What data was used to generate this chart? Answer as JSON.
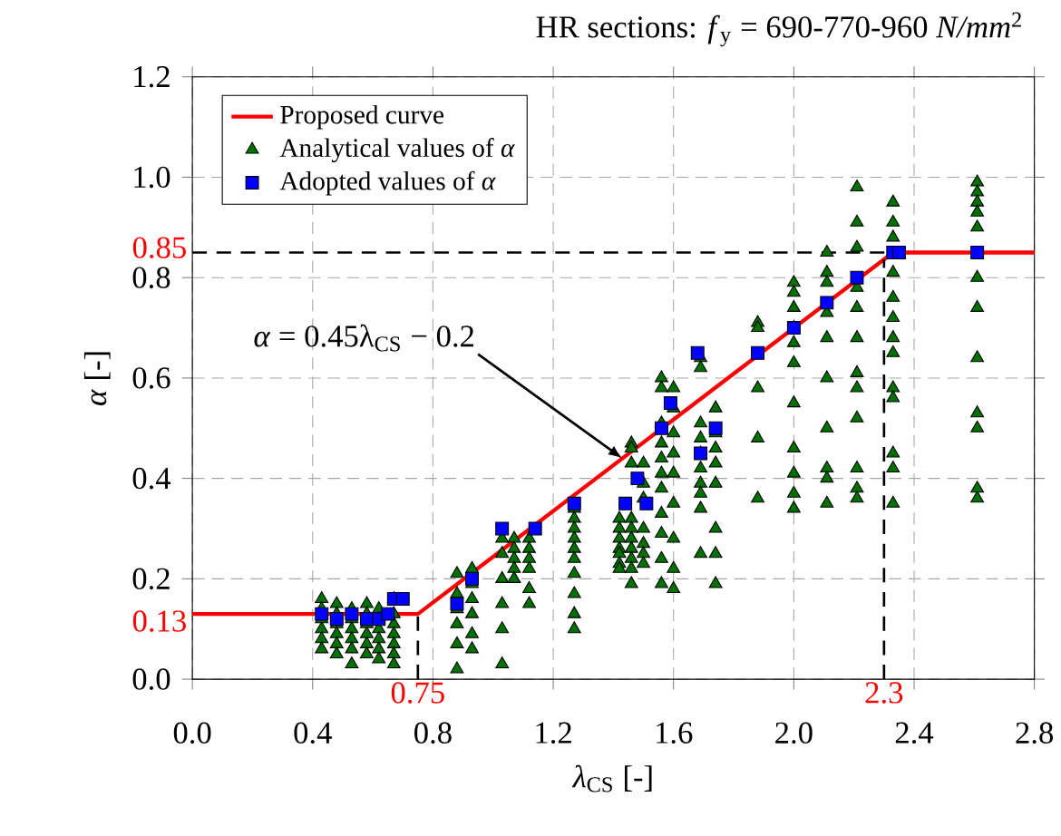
{
  "chart_data": {
    "type": "scatter",
    "title": "HR sections: *f*$_{y}$ = 690-770-960 *N/mm*$^{2}$",
    "xlabel": "*λ*$_{CS}$ [-]",
    "ylabel": "*α* [-]",
    "xlim": [
      0,
      2.8
    ],
    "ylim": [
      0,
      1.2
    ],
    "xticks": [
      {
        "value": 0,
        "label": "0.0"
      },
      0.4,
      0.8,
      1.2,
      1.6,
      {
        "value": 2,
        "label": "2.0"
      },
      2.4,
      2.8
    ],
    "yticks": [
      {
        "value": 0,
        "label": "0.0"
      },
      0.2,
      0.4,
      0.6,
      0.8,
      {
        "value": 1,
        "label": "1.0"
      },
      1.2
    ],
    "grid": true,
    "legend": "top left",
    "series": [
      {
        "name": "Proposed curve",
        "type": "line",
        "color": "#ff0000",
        "marker": "none",
        "x": [
          0,
          0.75,
          2.33,
          2.8
        ],
        "values": [
          0.13,
          0.13,
          0.85,
          0.85
        ]
      },
      {
        "name": "Analytical values of *α*",
        "type": "scatter",
        "color": "#007000",
        "marker": "triangle",
        "x": [
          0.43,
          0.43,
          0.43,
          0.43,
          0.43,
          0.43,
          0.48,
          0.48,
          0.48,
          0.48,
          0.48,
          0.48,
          0.53,
          0.53,
          0.53,
          0.53,
          0.53,
          0.53,
          0.58,
          0.58,
          0.58,
          0.58,
          0.58,
          0.58,
          0.62,
          0.62,
          0.62,
          0.62,
          0.62,
          0.62,
          0.67,
          0.67,
          0.67,
          0.67,
          0.67,
          0.67,
          0.67,
          0.88,
          0.88,
          0.88,
          0.88,
          0.88,
          0.88,
          0.93,
          0.93,
          0.93,
          0.93,
          0.93,
          0.93,
          1.03,
          1.03,
          1.03,
          1.03,
          1.03,
          1.03,
          1.07,
          1.07,
          1.07,
          1.07,
          1.07,
          1.12,
          1.12,
          1.12,
          1.12,
          1.12,
          1.12,
          1.27,
          1.27,
          1.27,
          1.27,
          1.27,
          1.27,
          1.27,
          1.27,
          1.27,
          1.27,
          1.42,
          1.42,
          1.42,
          1.42,
          1.42,
          1.42,
          1.42,
          1.46,
          1.46,
          1.46,
          1.46,
          1.46,
          1.46,
          1.46,
          1.46,
          1.46,
          1.46,
          1.5,
          1.5,
          1.5,
          1.5,
          1.5,
          1.5,
          1.5,
          1.56,
          1.56,
          1.56,
          1.56,
          1.56,
          1.56,
          1.56,
          1.56,
          1.56,
          1.56,
          1.56,
          1.6,
          1.6,
          1.6,
          1.6,
          1.6,
          1.6,
          1.6,
          1.6,
          1.6,
          1.69,
          1.69,
          1.69,
          1.69,
          1.69,
          1.69,
          1.69,
          1.69,
          1.69,
          1.69,
          1.74,
          1.74,
          1.74,
          1.74,
          1.74,
          1.74,
          1.74,
          1.74,
          1.88,
          1.88,
          1.88,
          1.88,
          1.88,
          2.0,
          2.0,
          2.0,
          2.0,
          2.0,
          2.0,
          2.0,
          2.0,
          2.0,
          2.0,
          2.0,
          2.11,
          2.11,
          2.11,
          2.11,
          2.11,
          2.11,
          2.11,
          2.11,
          2.11,
          2.11,
          2.21,
          2.21,
          2.21,
          2.21,
          2.21,
          2.21,
          2.21,
          2.21,
          2.21,
          2.21,
          2.21,
          2.21,
          2.33,
          2.33,
          2.33,
          2.33,
          2.33,
          2.33,
          2.33,
          2.33,
          2.33,
          2.33,
          2.33,
          2.33,
          2.33,
          2.61,
          2.61,
          2.61,
          2.61,
          2.61,
          2.61,
          2.61,
          2.61,
          2.61,
          2.61,
          2.61,
          2.61
        ],
        "values": [
          0.16,
          0.14,
          0.12,
          0.1,
          0.08,
          0.06,
          0.15,
          0.13,
          0.11,
          0.09,
          0.07,
          0.05,
          0.14,
          0.12,
          0.1,
          0.08,
          0.06,
          0.03,
          0.15,
          0.13,
          0.11,
          0.09,
          0.07,
          0.05,
          0.14,
          0.12,
          0.1,
          0.08,
          0.06,
          0.04,
          0.16,
          0.13,
          0.11,
          0.09,
          0.07,
          0.05,
          0.03,
          0.21,
          0.17,
          0.14,
          0.11,
          0.07,
          0.02,
          0.22,
          0.19,
          0.16,
          0.13,
          0.09,
          0.06,
          0.28,
          0.25,
          0.2,
          0.15,
          0.1,
          0.03,
          0.28,
          0.26,
          0.24,
          0.22,
          0.2,
          0.28,
          0.26,
          0.24,
          0.22,
          0.18,
          0.15,
          0.34,
          0.32,
          0.3,
          0.28,
          0.26,
          0.24,
          0.21,
          0.17,
          0.13,
          0.1,
          0.32,
          0.3,
          0.28,
          0.26,
          0.25,
          0.23,
          0.22,
          0.47,
          0.46,
          0.43,
          0.32,
          0.3,
          0.28,
          0.26,
          0.24,
          0.22,
          0.19,
          0.43,
          0.39,
          0.36,
          0.3,
          0.27,
          0.25,
          0.23,
          0.6,
          0.58,
          0.51,
          0.47,
          0.44,
          0.41,
          0.38,
          0.33,
          0.29,
          0.24,
          0.19,
          0.58,
          0.54,
          0.49,
          0.45,
          0.41,
          0.35,
          0.28,
          0.22,
          0.18,
          0.64,
          0.62,
          0.51,
          0.48,
          0.45,
          0.42,
          0.39,
          0.37,
          0.34,
          0.25,
          0.54,
          0.49,
          0.46,
          0.43,
          0.39,
          0.3,
          0.25,
          0.19,
          0.71,
          0.7,
          0.58,
          0.48,
          0.36,
          0.79,
          0.77,
          0.74,
          0.7,
          0.67,
          0.63,
          0.55,
          0.46,
          0.41,
          0.37,
          0.34,
          0.85,
          0.81,
          0.79,
          0.73,
          0.68,
          0.6,
          0.5,
          0.42,
          0.4,
          0.35,
          0.98,
          0.91,
          0.86,
          0.78,
          0.74,
          0.68,
          0.61,
          0.58,
          0.52,
          0.42,
          0.38,
          0.36,
          0.95,
          0.91,
          0.88,
          0.81,
          0.76,
          0.72,
          0.68,
          0.65,
          0.58,
          0.56,
          0.45,
          0.42,
          0.35,
          0.99,
          0.97,
          0.95,
          0.93,
          0.9,
          0.8,
          0.74,
          0.64,
          0.53,
          0.5,
          0.38,
          0.36
        ]
      },
      {
        "name": "Adopted values of *α*",
        "type": "scatter",
        "color": "#0000ff",
        "marker": "square",
        "x": [
          0.43,
          0.48,
          0.53,
          0.58,
          0.62,
          0.65,
          0.67,
          0.7,
          0.88,
          0.93,
          1.03,
          1.14,
          1.27,
          1.44,
          1.48,
          1.51,
          1.56,
          1.59,
          1.68,
          1.69,
          1.74,
          1.88,
          2.0,
          2.11,
          2.21,
          2.33,
          2.35,
          2.61
        ],
        "values": [
          0.13,
          0.12,
          0.13,
          0.12,
          0.12,
          0.13,
          0.16,
          0.16,
          0.15,
          0.2,
          0.3,
          0.3,
          0.35,
          0.35,
          0.4,
          0.35,
          0.5,
          0.55,
          0.65,
          0.45,
          0.5,
          0.65,
          0.7,
          0.75,
          0.8,
          0.85,
          0.85,
          0.85
        ]
      }
    ],
    "ref_lines": [
      {
        "axis": "y",
        "value": 0.85,
        "label": "0.85",
        "color": "#000000",
        "line_style": "dashed"
      },
      {
        "axis": "x",
        "value": 0.75,
        "label": "0.75",
        "color": "#000000",
        "line_style": "dashed"
      },
      {
        "axis": "x",
        "value": 2.3,
        "label": "2.3",
        "color": "#000000",
        "line_style": "dashed"
      }
    ],
    "annotations": [
      {
        "text": "*α* = 0.45λ$_{CS}$ − 0.2",
        "x": 1.43,
        "y": 0.44
      },
      {
        "text": "0.13",
        "x": 0,
        "y": 0.13
      }
    ]
  }
}
